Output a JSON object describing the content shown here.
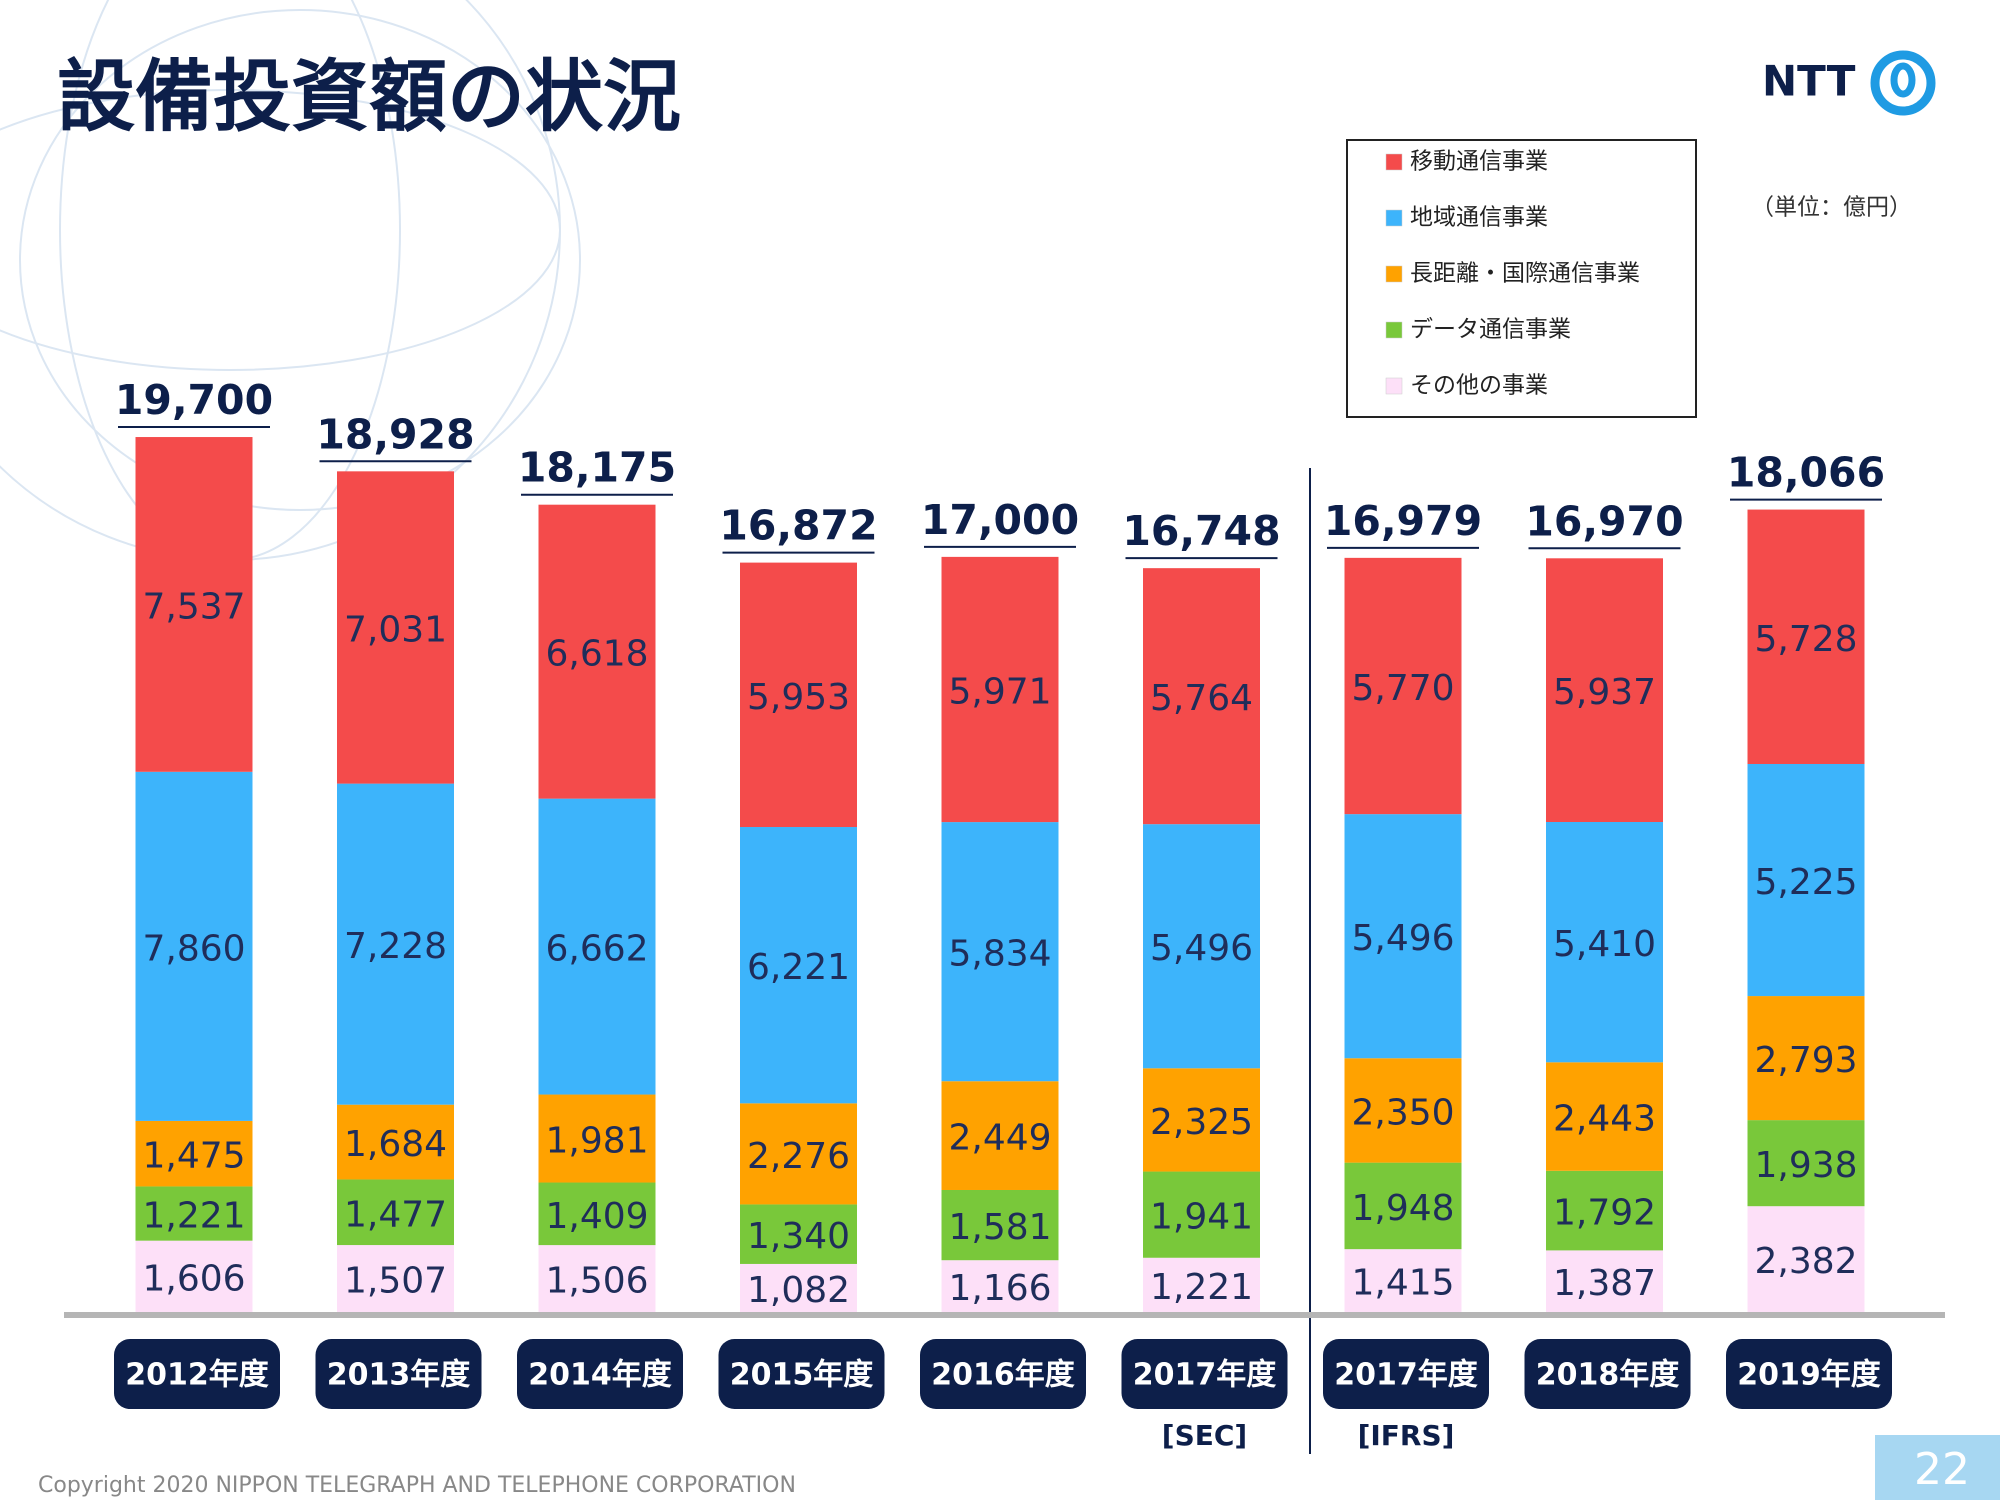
{
  "title": "設備投資額の状況",
  "logo": "NTT",
  "unit_note": "（単位：億円）",
  "copyright": "Copyright 2020 NIPPON TELEGRAPH AND TELEPHONE CORPORATION",
  "page_number": "22",
  "chart_data": {
    "type": "bar",
    "stacked": true,
    "categories": [
      "2012年度",
      "2013年度",
      "2014年度",
      "2015年度",
      "2016年度",
      "2017年度",
      "2017年度",
      "2018年度",
      "2019年度"
    ],
    "category_notes": [
      null,
      null,
      null,
      null,
      null,
      "[SEC]",
      "[IFRS]",
      null,
      null
    ],
    "series": [
      {
        "name": "移動通信事業",
        "color": "#f44b4b",
        "values": [
          7537,
          7031,
          6618,
          5953,
          5971,
          5764,
          5770,
          5937,
          5728
        ],
        "value_labels": [
          "7,537",
          "7,031",
          "6,618",
          "5,953",
          "5,971",
          "5,764",
          "5,770",
          "5,937",
          "5,728"
        ]
      },
      {
        "name": "地域通信事業",
        "color": "#3db4fb",
        "values": [
          7860,
          7228,
          6662,
          6221,
          5834,
          5496,
          5496,
          5410,
          5225
        ],
        "value_labels": [
          "7,860",
          "7,228",
          "6,662",
          "6,221",
          "5,834",
          "5,496",
          "5,496",
          "5,410",
          "5,225"
        ]
      },
      {
        "name": "長距離・国際通信事業",
        "color": "#ffa200",
        "values": [
          1475,
          1684,
          1981,
          2276,
          2449,
          2325,
          2350,
          2443,
          2793
        ],
        "value_labels": [
          "1,475",
          "1,684",
          "1,981",
          "2,276",
          "2,449",
          "2,325",
          "2,350",
          "2,443",
          "2,793"
        ]
      },
      {
        "name": "データ通信事業",
        "color": "#79c83a",
        "values": [
          1221,
          1477,
          1409,
          1340,
          1581,
          1941,
          1948,
          1792,
          1938
        ],
        "value_labels": [
          "1,221",
          "1,477",
          "1,409",
          "1,340",
          "1,581",
          "1,941",
          "1,948",
          "1,792",
          "1,938"
        ]
      },
      {
        "name": "その他の事業",
        "color": "#fde0f8",
        "values": [
          1606,
          1507,
          1506,
          1082,
          1166,
          1221,
          1415,
          1387,
          2382
        ],
        "value_labels": [
          "1,606",
          "1,507",
          "1,506",
          "1,082",
          "1,166",
          "1,221",
          "1,415",
          "1,387",
          "2,382"
        ]
      }
    ],
    "totals": [
      19700,
      18928,
      18175,
      16872,
      17000,
      16748,
      16979,
      16970,
      18066
    ],
    "total_labels": [
      "19,700",
      "18,928",
      "18,175",
      "16,872",
      "17,000",
      "16,748",
      "16,979",
      "16,970",
      "18,066"
    ]
  }
}
